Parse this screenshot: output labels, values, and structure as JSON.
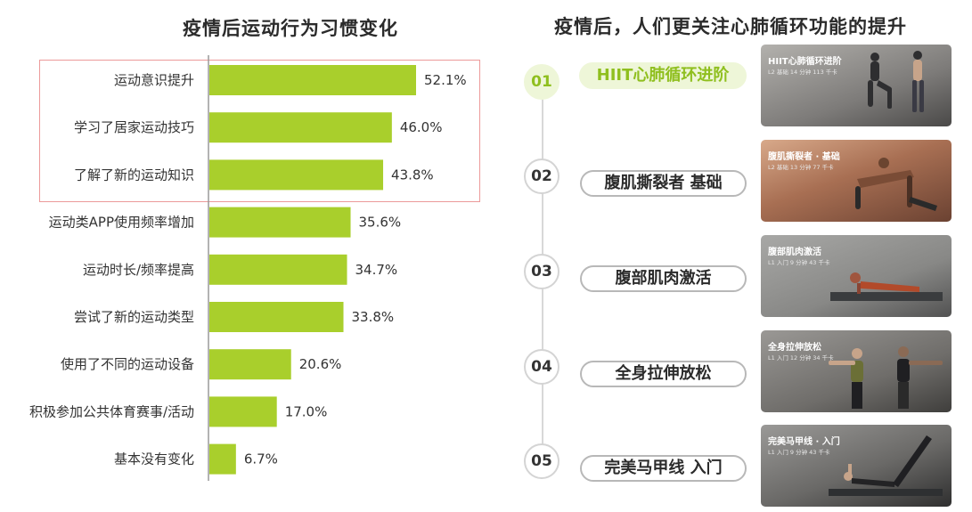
{
  "left": {
    "title": "疫情后运动行为习惯变化"
  },
  "chart_data": {
    "type": "bar",
    "orientation": "horizontal",
    "title": "疫情后运动行为习惯变化",
    "categories": [
      "运动意识提升",
      "学习了居家运动技巧",
      "了解了新的运动知识",
      "运动类APP使用频率增加",
      "运动时长/频率提高",
      "尝试了新的运动类型",
      "使用了不同的运动设备",
      "积极参加公共体育赛事/活动",
      "基本没有变化"
    ],
    "values": [
      52.1,
      46.0,
      43.8,
      35.6,
      34.7,
      33.8,
      20.6,
      17.0,
      6.7
    ],
    "value_labels": [
      "52.1%",
      "46.0%",
      "43.8%",
      "35.6%",
      "34.7%",
      "33.8%",
      "20.6%",
      "17.0%",
      "6.7%"
    ],
    "xlim": [
      0,
      52.1
    ],
    "highlighted_categories": [
      "运动意识提升",
      "学习了居家运动技巧",
      "了解了新的运动知识"
    ],
    "bar_color": "#a9cf2c",
    "highlight_border_color": "#ec9a9a"
  },
  "right": {
    "title": "疫情后，人们更关注心肺循环功能的提升",
    "steps": [
      {
        "num": "01",
        "label": "HIIT心肺循环进阶",
        "card_title": "HIIT心肺循环进阶",
        "card_meta": "L2 基础  14 分钟  113 千卡",
        "active": true
      },
      {
        "num": "02",
        "label": "腹肌撕裂者 基础",
        "card_title": "腹肌撕裂者 · 基础",
        "card_meta": "L2 基础  13 分钟  77 千卡",
        "active": false
      },
      {
        "num": "03",
        "label": "腹部肌肉激活",
        "card_title": "腹部肌肉激活",
        "card_meta": "L1 入门  9 分钟  43 千卡",
        "active": false
      },
      {
        "num": "04",
        "label": "全身拉伸放松",
        "card_title": "全身拉伸放松",
        "card_meta": "L1 入门  12 分钟  34 千卡",
        "active": false
      },
      {
        "num": "05",
        "label": "完美马甲线 入门",
        "card_title": "完美马甲线 · 入门",
        "card_meta": "L1 入门  9 分钟  43 千卡",
        "active": false
      }
    ],
    "accent_color": "#8fbf1e",
    "active_bg_color": "#eef6d8"
  }
}
